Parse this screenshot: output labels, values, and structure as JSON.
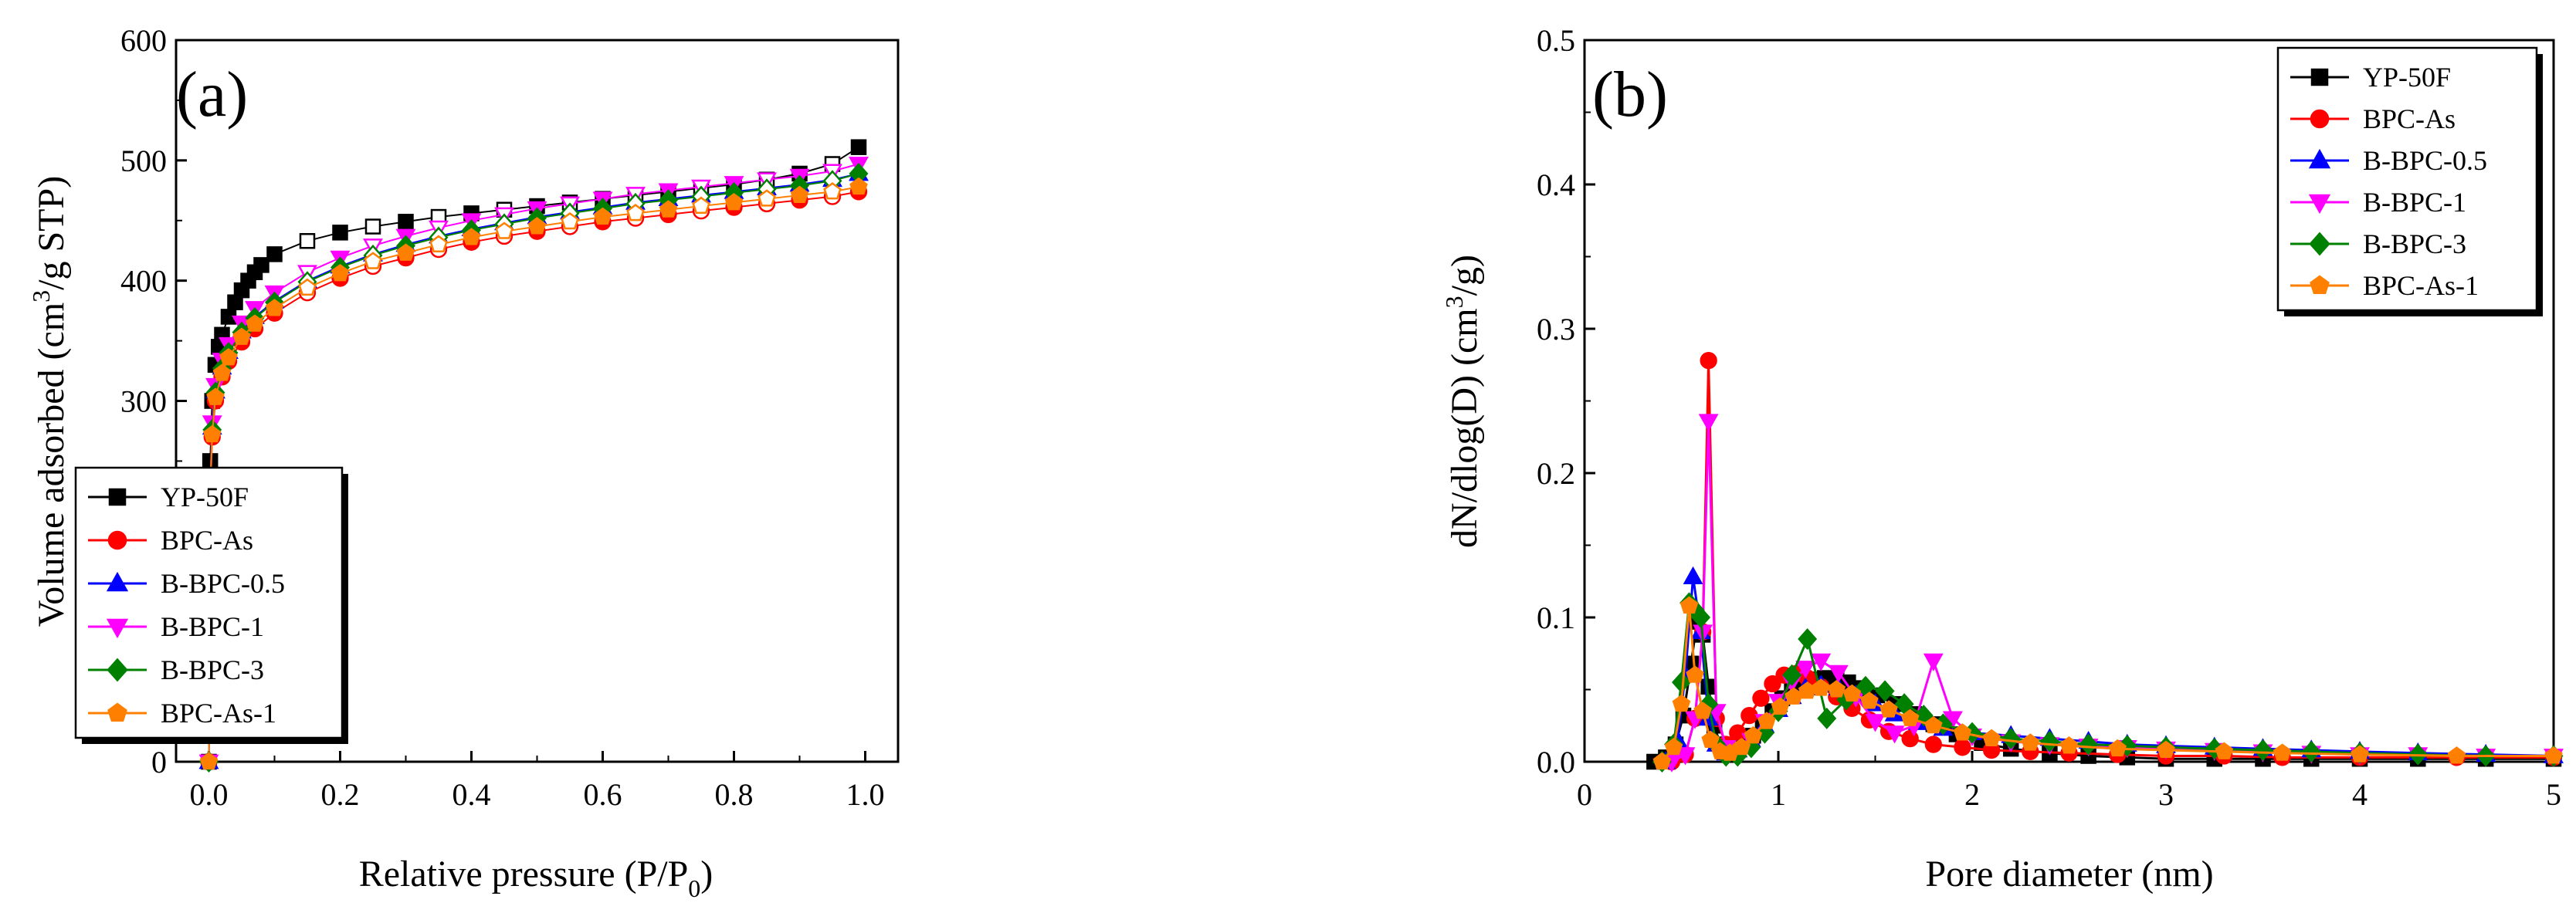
{
  "chart_data": [
    {
      "type": "scatter",
      "panel_label": "(a)",
      "xlabel": "Relative pressure (P/P0)",
      "xlabel_main": "Relative pressure (P/P",
      "xlabel_sub": "0",
      "xlabel_tail": ")",
      "ylabel": "Volume adsorbed (cm3/g STP)",
      "ylabel_main": "Volume adsorbed (cm",
      "ylabel_sup": "3",
      "ylabel_tail": "/g STP)",
      "xlim": [
        -0.05,
        1.05
      ],
      "ylim": [
        0,
        600
      ],
      "xticks": [
        0.0,
        0.2,
        0.4,
        0.6,
        0.8,
        1.0
      ],
      "xtick_labels": [
        "0.0",
        "0.2",
        "0.4",
        "0.6",
        "0.8",
        "1.0"
      ],
      "yticks": [
        0,
        100,
        200,
        300,
        400,
        500,
        600
      ],
      "ytick_labels": [
        "0",
        "100",
        "200",
        "300",
        "400",
        "500",
        "600"
      ],
      "legend_position": "bottom-right",
      "series": [
        {
          "name": "YP-50F",
          "color": "#000000",
          "marker": "square",
          "x": [
            0.0,
            0.002,
            0.005,
            0.01,
            0.015,
            0.02,
            0.03,
            0.04,
            0.05,
            0.06,
            0.07,
            0.08,
            0.1,
            0.15,
            0.2,
            0.25,
            0.3,
            0.35,
            0.4,
            0.45,
            0.5,
            0.55,
            0.6,
            0.65,
            0.7,
            0.75,
            0.8,
            0.85,
            0.9,
            0.95,
            0.99
          ],
          "y": [
            0,
            250,
            300,
            330,
            345,
            355,
            370,
            382,
            392,
            400,
            407,
            413,
            422,
            433,
            440,
            445,
            449,
            453,
            456,
            459,
            462,
            465,
            468,
            471,
            474,
            477,
            480,
            484,
            489,
            497,
            511
          ]
        },
        {
          "name": "BPC-As",
          "color": "#ff0000",
          "marker": "circle",
          "x": [
            0.0,
            0.002,
            0.005,
            0.01,
            0.02,
            0.03,
            0.05,
            0.07,
            0.1,
            0.15,
            0.2,
            0.25,
            0.3,
            0.35,
            0.4,
            0.45,
            0.5,
            0.55,
            0.6,
            0.65,
            0.7,
            0.75,
            0.8,
            0.85,
            0.9,
            0.95,
            0.99
          ],
          "y": [
            0,
            220,
            270,
            300,
            320,
            333,
            349,
            360,
            373,
            390,
            402,
            412,
            419,
            426,
            432,
            437,
            441,
            445,
            449,
            452,
            455,
            458,
            461,
            464,
            467,
            470,
            474
          ]
        },
        {
          "name": "B-BPC-0.5",
          "color": "#0000ff",
          "marker": "triangle-up",
          "x": [
            0.0,
            0.002,
            0.005,
            0.01,
            0.02,
            0.03,
            0.05,
            0.07,
            0.1,
            0.15,
            0.2,
            0.25,
            0.3,
            0.35,
            0.4,
            0.45,
            0.5,
            0.55,
            0.6,
            0.65,
            0.7,
            0.75,
            0.8,
            0.85,
            0.9,
            0.95,
            0.99
          ],
          "y": [
            0,
            228,
            278,
            308,
            328,
            341,
            358,
            370,
            383,
            400,
            412,
            422,
            430,
            437,
            443,
            448,
            453,
            457,
            461,
            465,
            468,
            471,
            474,
            477,
            480,
            484,
            489
          ]
        },
        {
          "name": "B-BPC-1",
          "color": "#ff00ff",
          "marker": "triangle-down",
          "x": [
            0.0,
            0.002,
            0.005,
            0.01,
            0.02,
            0.03,
            0.05,
            0.07,
            0.1,
            0.15,
            0.2,
            0.25,
            0.3,
            0.35,
            0.4,
            0.45,
            0.5,
            0.55,
            0.6,
            0.65,
            0.7,
            0.75,
            0.8,
            0.85,
            0.9,
            0.95,
            0.99
          ],
          "y": [
            0,
            232,
            282,
            313,
            334,
            347,
            365,
            377,
            390,
            407,
            419,
            429,
            437,
            444,
            450,
            455,
            460,
            464,
            468,
            472,
            475,
            478,
            481,
            484,
            487,
            491,
            497
          ]
        },
        {
          "name": "B-BPC-3",
          "color": "#008000",
          "marker": "diamond",
          "x": [
            0.0,
            0.002,
            0.005,
            0.01,
            0.02,
            0.03,
            0.05,
            0.07,
            0.1,
            0.15,
            0.2,
            0.25,
            0.3,
            0.35,
            0.4,
            0.45,
            0.5,
            0.55,
            0.6,
            0.65,
            0.7,
            0.75,
            0.8,
            0.85,
            0.9,
            0.95,
            0.99
          ],
          "y": [
            0,
            226,
            276,
            307,
            327,
            340,
            357,
            369,
            382,
            399,
            411,
            421,
            429,
            436,
            442,
            447,
            452,
            456,
            460,
            464,
            467,
            470,
            473,
            476,
            479,
            483,
            489
          ]
        },
        {
          "name": "BPC-As-1",
          "color": "#ff8000",
          "marker": "pentagon",
          "x": [
            0.0,
            0.002,
            0.005,
            0.01,
            0.02,
            0.03,
            0.05,
            0.07,
            0.1,
            0.15,
            0.2,
            0.25,
            0.3,
            0.35,
            0.4,
            0.45,
            0.5,
            0.55,
            0.6,
            0.65,
            0.7,
            0.75,
            0.8,
            0.85,
            0.9,
            0.95,
            0.99
          ],
          "y": [
            0,
            222,
            272,
            303,
            323,
            336,
            353,
            364,
            377,
            394,
            406,
            416,
            423,
            430,
            436,
            441,
            445,
            449,
            453,
            456,
            459,
            462,
            465,
            468,
            471,
            474,
            478
          ]
        }
      ]
    },
    {
      "type": "line",
      "panel_label": "(b)",
      "xlabel": "Pore diameter (nm)",
      "ylabel": "dN/dlog(D) (cm3/g)",
      "ylabel_main": "dN/dlog(D) (cm",
      "ylabel_sup": "3",
      "ylabel_tail": "/g)",
      "xlim": [
        0,
        5
      ],
      "ylim": [
        0,
        0.5
      ],
      "xticks": [
        0,
        1,
        2,
        3,
        4,
        5
      ],
      "xtick_labels": [
        "0",
        "1",
        "2",
        "3",
        "4",
        "5"
      ],
      "yticks": [
        0.0,
        0.1,
        0.2,
        0.3,
        0.4,
        0.5
      ],
      "ytick_labels": [
        "0.0",
        "0.1",
        "0.2",
        "0.3",
        "0.4",
        "0.5"
      ],
      "legend_position": "top-right",
      "series": [
        {
          "name": "YP-50F",
          "color": "#000000",
          "marker": "square",
          "x": [
            0.36,
            0.42,
            0.47,
            0.51,
            0.55,
            0.58,
            0.61,
            0.64,
            0.67,
            0.7,
            0.73,
            0.77,
            0.82,
            0.87,
            0.92,
            0.97,
            1.02,
            1.07,
            1.12,
            1.18,
            1.24,
            1.3,
            1.36,
            1.43,
            1.51,
            1.6,
            1.7,
            1.8,
            1.92,
            2.05,
            2.2,
            2.4,
            2.6,
            2.8,
            3.0,
            3.25,
            3.5,
            3.75,
            4.0,
            4.3,
            4.65,
            5.0
          ],
          "y": [
            0.0,
            0.003,
            0.012,
            0.032,
            0.068,
            0.097,
            0.088,
            0.052,
            0.025,
            0.012,
            0.007,
            0.008,
            0.012,
            0.018,
            0.026,
            0.035,
            0.044,
            0.051,
            0.055,
            0.057,
            0.058,
            0.057,
            0.055,
            0.051,
            0.046,
            0.04,
            0.033,
            0.026,
            0.019,
            0.013,
            0.009,
            0.006,
            0.004,
            0.003,
            0.002,
            0.002,
            0.002,
            0.002,
            0.002,
            0.002,
            0.002,
            0.002
          ]
        },
        {
          "name": "BPC-As",
          "color": "#ff0000",
          "marker": "circle",
          "x": [
            0.45,
            0.52,
            0.57,
            0.61,
            0.64,
            0.68,
            0.73,
            0.79,
            0.85,
            0.91,
            0.97,
            1.03,
            1.09,
            1.15,
            1.22,
            1.3,
            1.38,
            1.47,
            1.57,
            1.68,
            1.8,
            1.95,
            2.1,
            2.3,
            2.5,
            2.75,
            3.0,
            3.3,
            3.6,
            4.0,
            4.5,
            5.0
          ],
          "y": [
            0.0,
            0.005,
            0.03,
            0.09,
            0.278,
            0.03,
            0.012,
            0.02,
            0.032,
            0.044,
            0.054,
            0.06,
            0.061,
            0.058,
            0.052,
            0.045,
            0.037,
            0.029,
            0.021,
            0.016,
            0.012,
            0.01,
            0.008,
            0.007,
            0.006,
            0.005,
            0.004,
            0.004,
            0.003,
            0.003,
            0.003,
            0.003
          ]
        },
        {
          "name": "B-BPC-0.5",
          "color": "#0000ff",
          "marker": "triangle-up",
          "x": [
            0.42,
            0.48,
            0.52,
            0.56,
            0.6,
            0.64,
            0.68,
            0.73,
            0.79,
            0.86,
            0.93,
            1.0,
            1.07,
            1.14,
            1.22,
            1.31,
            1.4,
            1.5,
            1.6,
            1.72,
            1.85,
            2.0,
            2.2,
            2.4,
            2.6,
            2.8,
            3.0,
            3.25,
            3.5,
            3.75,
            4.0,
            4.3,
            4.65,
            5.0
          ],
          "y": [
            0.0,
            0.015,
            0.06,
            0.128,
            0.09,
            0.03,
            0.012,
            0.006,
            0.008,
            0.015,
            0.025,
            0.036,
            0.045,
            0.051,
            0.053,
            0.051,
            0.046,
            0.04,
            0.033,
            0.027,
            0.023,
            0.02,
            0.018,
            0.016,
            0.014,
            0.012,
            0.011,
            0.01,
            0.009,
            0.008,
            0.007,
            0.006,
            0.005,
            0.004
          ]
        },
        {
          "name": "B-BPC-1",
          "color": "#ff00ff",
          "marker": "triangle-down",
          "x": [
            0.45,
            0.52,
            0.57,
            0.61,
            0.64,
            0.68,
            0.73,
            0.79,
            0.86,
            0.93,
            1.0,
            1.07,
            1.14,
            1.22,
            1.31,
            1.4,
            1.5,
            1.6,
            1.7,
            1.8,
            1.9,
            2.0,
            2.2,
            2.4,
            2.6,
            2.8,
            3.0,
            3.25,
            3.5,
            3.75,
            4.0,
            4.3,
            4.65,
            5.0
          ],
          "y": [
            0.0,
            0.005,
            0.03,
            0.09,
            0.236,
            0.035,
            0.01,
            0.008,
            0.015,
            0.028,
            0.042,
            0.055,
            0.065,
            0.07,
            0.062,
            0.045,
            0.028,
            0.02,
            0.025,
            0.07,
            0.03,
            0.018,
            0.014,
            0.012,
            0.011,
            0.01,
            0.009,
            0.008,
            0.007,
            0.006,
            0.005,
            0.005,
            0.004,
            0.004
          ]
        },
        {
          "name": "B-BPC-3",
          "color": "#008000",
          "marker": "diamond",
          "x": [
            0.4,
            0.46,
            0.5,
            0.54,
            0.57,
            0.6,
            0.64,
            0.68,
            0.73,
            0.79,
            0.86,
            0.93,
            1.0,
            1.07,
            1.15,
            1.25,
            1.35,
            1.45,
            1.55,
            1.65,
            1.75,
            1.85,
            2.0,
            2.2,
            2.4,
            2.6,
            2.8,
            3.0,
            3.25,
            3.5,
            3.75,
            4.0,
            4.3,
            4.65,
            5.0
          ],
          "y": [
            0.0,
            0.012,
            0.055,
            0.11,
            0.105,
            0.1,
            0.04,
            0.012,
            0.004,
            0.004,
            0.01,
            0.02,
            0.035,
            0.06,
            0.085,
            0.03,
            0.043,
            0.052,
            0.049,
            0.04,
            0.032,
            0.026,
            0.02,
            0.016,
            0.014,
            0.012,
            0.011,
            0.01,
            0.009,
            0.008,
            0.007,
            0.006,
            0.005,
            0.004,
            0.004
          ]
        },
        {
          "name": "BPC-As-1",
          "color": "#ff8000",
          "marker": "pentagon",
          "x": [
            0.4,
            0.46,
            0.5,
            0.54,
            0.57,
            0.61,
            0.65,
            0.7,
            0.75,
            0.81,
            0.87,
            0.94,
            1.01,
            1.08,
            1.15,
            1.22,
            1.3,
            1.38,
            1.47,
            1.57,
            1.68,
            1.8,
            1.95,
            2.1,
            2.3,
            2.5,
            2.75,
            3.0,
            3.3,
            3.6,
            4.0,
            4.5,
            5.0
          ],
          "y": [
            0.0,
            0.01,
            0.04,
            0.108,
            0.06,
            0.035,
            0.015,
            0.007,
            0.006,
            0.01,
            0.018,
            0.028,
            0.038,
            0.045,
            0.049,
            0.051,
            0.05,
            0.047,
            0.042,
            0.036,
            0.03,
            0.025,
            0.02,
            0.016,
            0.013,
            0.011,
            0.009,
            0.008,
            0.007,
            0.006,
            0.005,
            0.004,
            0.004
          ]
        }
      ]
    }
  ]
}
